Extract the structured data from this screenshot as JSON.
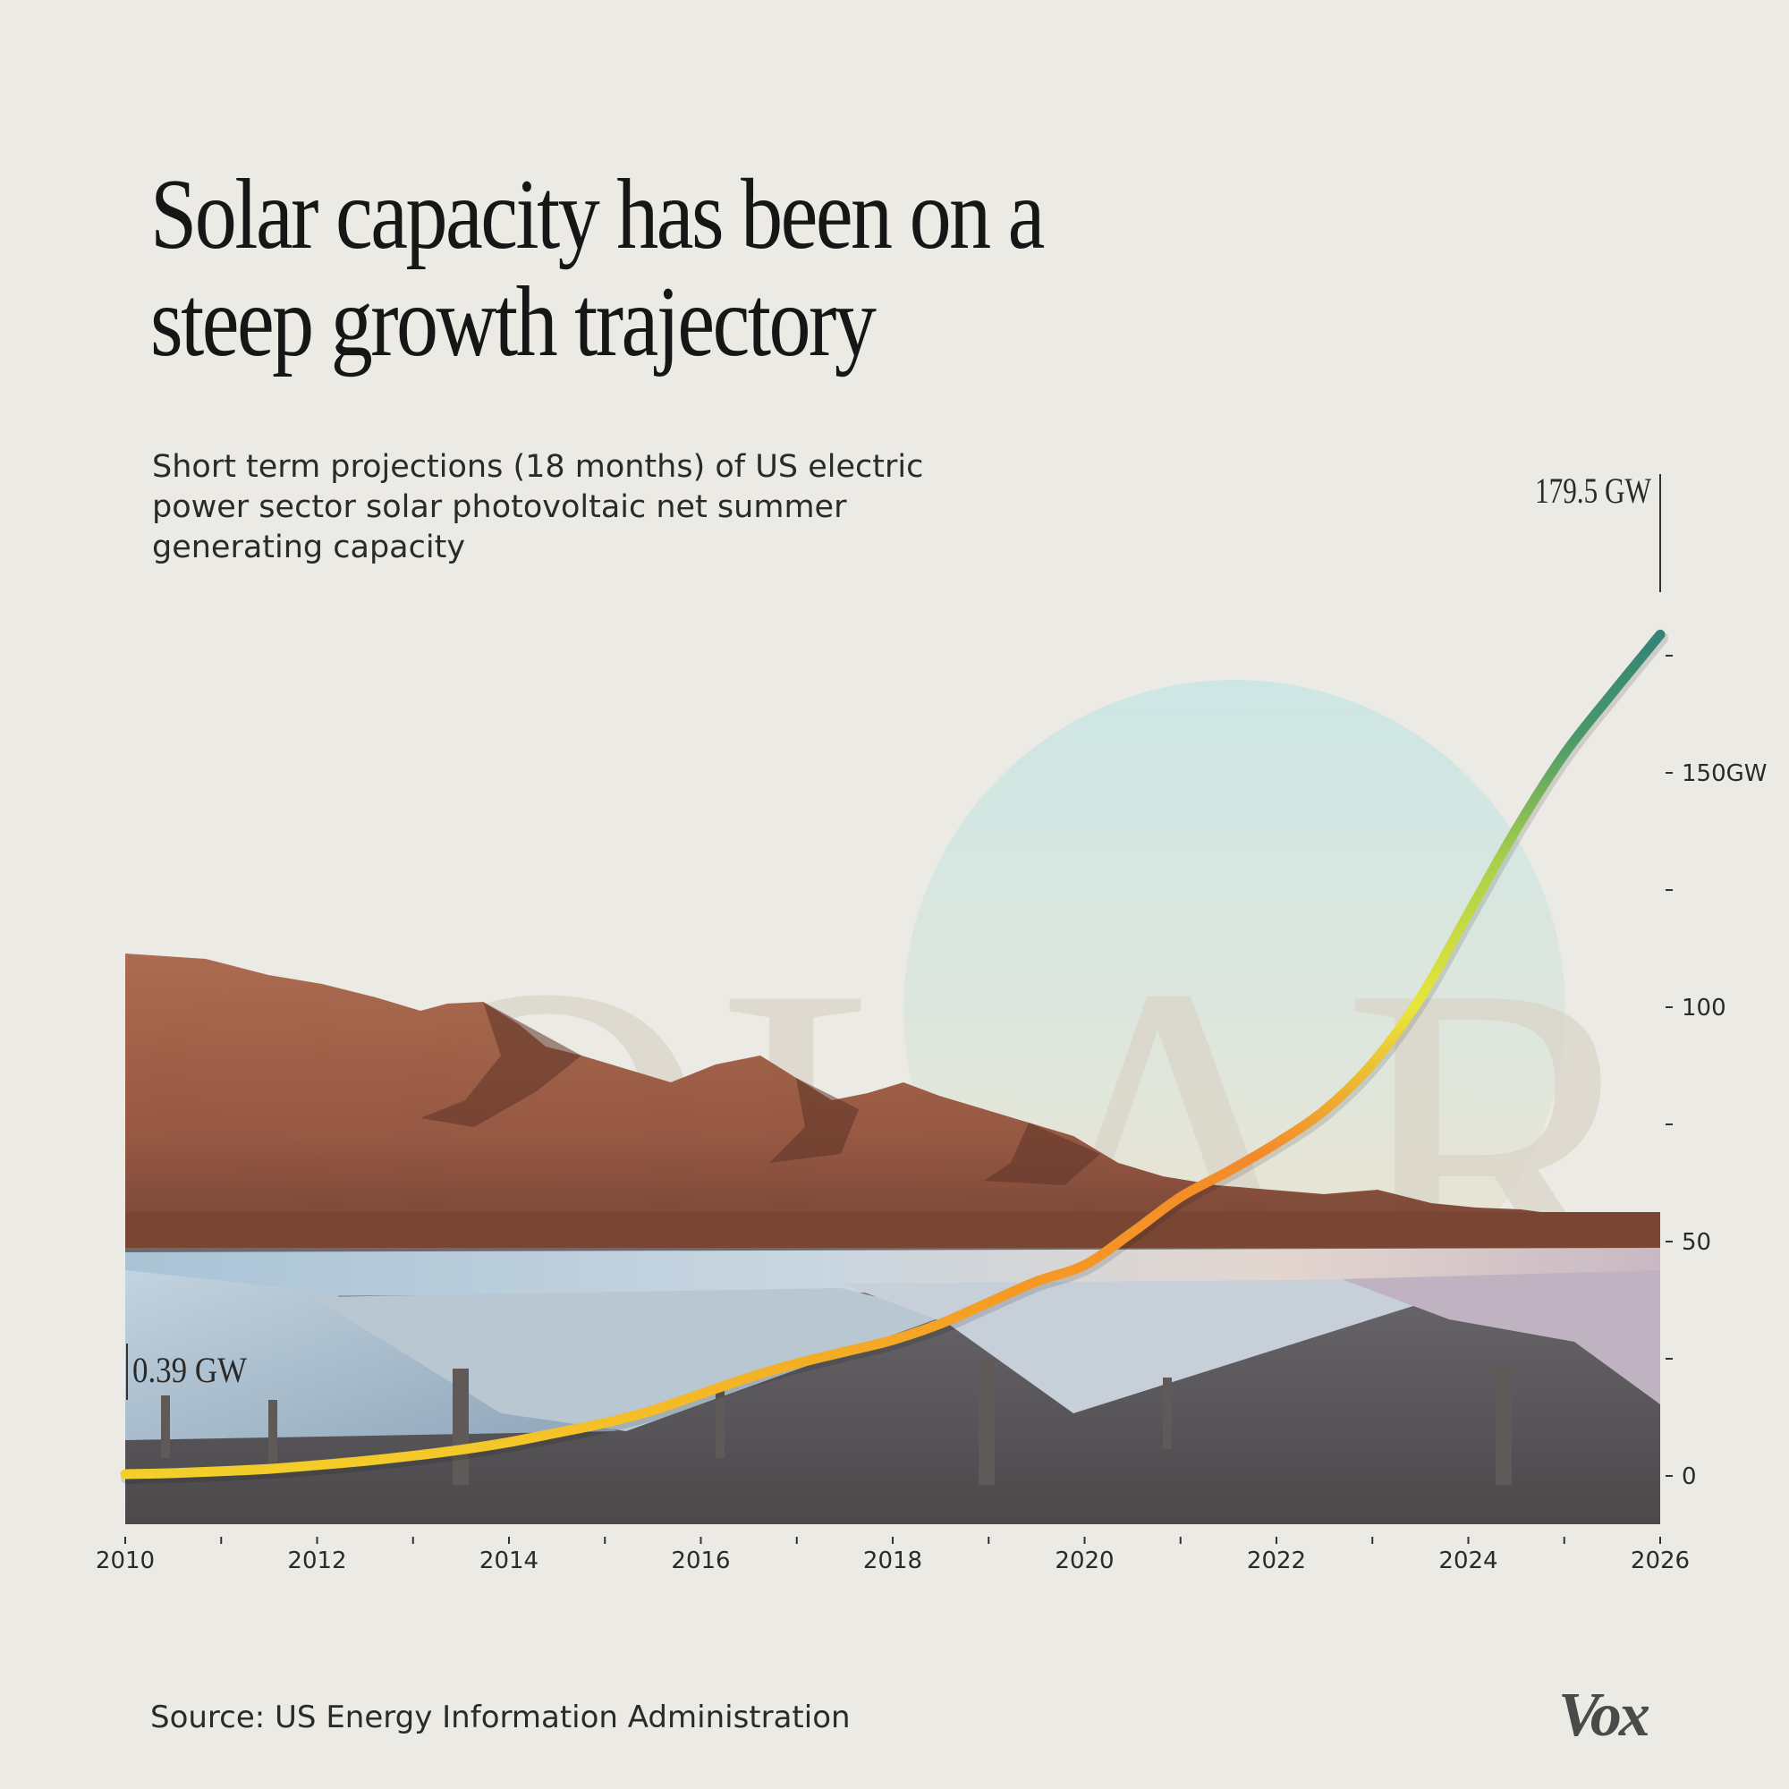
{
  "title": "Solar capacity has been on a steep growth trajectory",
  "subtitle": "Short term projections (18 months) of US electric power sector solar photovoltaic net summer generating capacity",
  "source": "Source: US Energy Information Administration",
  "logo_text": "Vox",
  "background_word": "SOLAR",
  "chart_data": {
    "type": "line",
    "xlim": [
      2010,
      2026
    ],
    "ylim": [
      0,
      180
    ],
    "x_ticks": [
      2010,
      2012,
      2014,
      2016,
      2018,
      2020,
      2022,
      2024,
      2026
    ],
    "x_tick_labels": [
      "2010",
      "2012",
      "2014",
      "2016",
      "2018",
      "2020",
      "2022",
      "2024",
      "2026"
    ],
    "y_ticks": [
      0,
      25,
      50,
      75,
      100,
      125,
      150,
      175
    ],
    "y_tick_labels": [
      {
        "value": 0,
        "label": "0"
      },
      {
        "value": 50,
        "label": "50"
      },
      {
        "value": 100,
        "label": "100"
      },
      {
        "value": 150,
        "label": "150GW"
      }
    ],
    "series": [
      {
        "x": [
          2010,
          2010.5,
          2011,
          2011.5,
          2012,
          2012.5,
          2013,
          2013.5,
          2014,
          2014.5,
          2015,
          2015.5,
          2016,
          2016.5,
          2017,
          2017.5,
          2018,
          2018.5,
          2019,
          2019.5,
          2020,
          2020.5,
          2021,
          2021.5,
          2022,
          2022.5,
          2023,
          2023.5,
          2024,
          2024.5,
          2025,
          2025.5,
          2026
        ],
        "y": [
          0.39,
          0.6,
          1,
          1.5,
          2.3,
          3.2,
          4.3,
          5.6,
          7.2,
          9.2,
          11.3,
          14,
          17.5,
          21,
          24,
          26.5,
          29,
          32.5,
          37,
          41.5,
          45,
          52,
          59.5,
          65,
          71,
          78,
          88,
          102,
          120,
          138,
          154,
          167,
          179.5
        ]
      }
    ],
    "annotations": [
      {
        "text": "0.39 GW",
        "x": 2010,
        "y": 0.39
      },
      {
        "text": "179.5 GW",
        "x": 2026,
        "y": 179.5
      }
    ]
  }
}
